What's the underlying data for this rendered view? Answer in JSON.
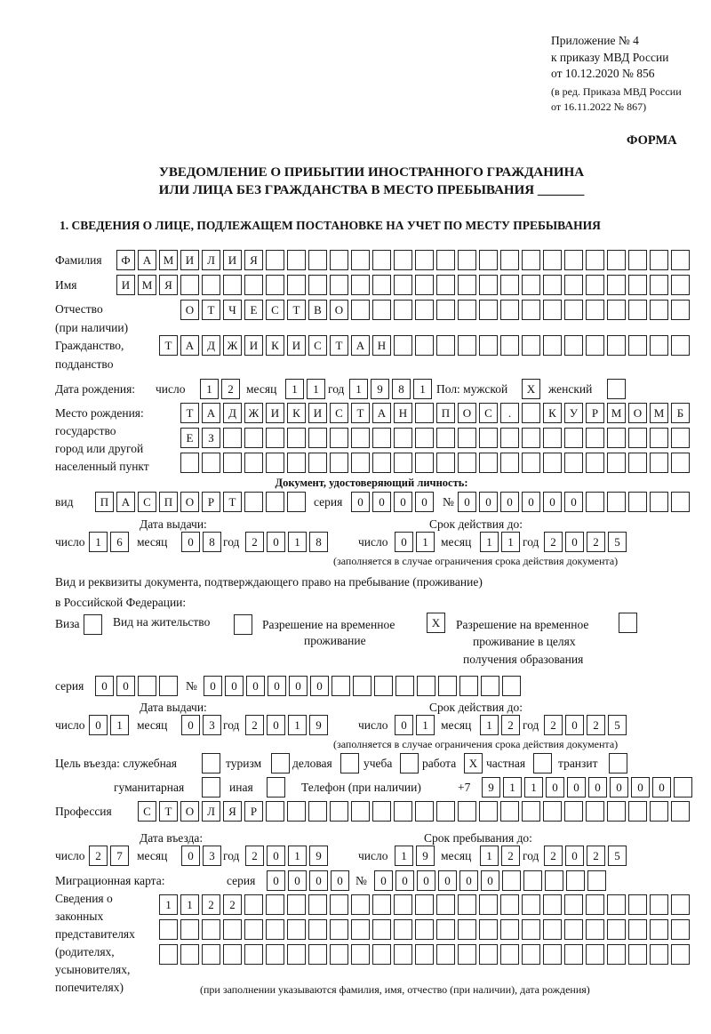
{
  "header": {
    "appendix": "Приложение № 4",
    "order": "к приказу МВД России",
    "order_date": "от 10.12.2020 № 856",
    "amend1": "(в ред. Приказа МВД России",
    "amend2": "от 16.11.2022 № 867)",
    "form_label": "ФОРМА",
    "title1": "УВЕДОМЛЕНИЕ О ПРИБЫТИИ ИНОСТРАННОГО ГРАЖДАНИНА",
    "title2": "ИЛИ ЛИЦА БЕЗ ГРАЖДАНСТВА В МЕСТО ПРЕБЫВАНИЯ _______",
    "section1": "1. СВЕДЕНИЯ О ЛИЦЕ, ПОДЛЕЖАЩЕМ ПОСТАНОВКЕ НА УЧЕТ ПО МЕСТУ ПРЕБЫВАНИЯ"
  },
  "person": {
    "surname_label": "Фамилия",
    "surname": "ФАМИЛИЯ",
    "name_label": "Имя",
    "name": "ИМЯ",
    "patronymic_label": "Отчество",
    "patronymic_label2": "(при наличии)",
    "patronymic": "ОТЧЕСТВО",
    "citizenship_label": "Гражданство,",
    "citizenship_label2": "подданство",
    "citizenship": "ТАДЖИКИСТАН",
    "dob_label": "Дата рождения:",
    "day_label": "число",
    "month_label": "месяц",
    "year_label": "год",
    "dob_day": "12",
    "dob_month": "11",
    "dob_year": "1981",
    "sex_label": "Пол: мужской",
    "male": "X",
    "female_label": "женский",
    "female": "",
    "birthplace_label1": "Место рождения:",
    "birthplace_label2": "государство",
    "birthplace_label3": "город или другой",
    "birthplace_label4": "населенный пункт",
    "birthplace_line1": "ТАДЖИКИСТАН ПОС. КУРМОМБ",
    "birthplace_line2": "ЕЗ",
    "birthplace_line3": ""
  },
  "id_document": {
    "heading": "Документ, удостоверяющий личность:",
    "type_label": "вид",
    "type": "ПАСПОРТ",
    "series_label": "серия",
    "series": "0000",
    "number_label": "№",
    "number": "000000",
    "issued_label": "Дата выдачи:",
    "valid_label": "Срок действия до:",
    "issued_day": "16",
    "issued_month": "08",
    "issued_year": "2018",
    "valid_day": "01",
    "valid_month": "11",
    "valid_year": "2025",
    "note": "(заполняется в случае ограничения срока действия документа)"
  },
  "stay_document": {
    "label1": "Вид и реквизиты документа, подтверждающего право на пребывание (проживание)",
    "label2": "в Российской Федерации:",
    "visa_label": "Виза",
    "visa": "",
    "residence_label": "Вид на жительство",
    "residence": "",
    "trp_label1": "Разрешение на временное",
    "trp_label2": "проживание",
    "trp": "X",
    "trp_edu_label1": "Разрешение на временное",
    "trp_edu_label2": "проживание в целях",
    "trp_edu_label3": "получения образования",
    "trp_edu": "",
    "series_label": "серия",
    "series": "00",
    "number_label": "№",
    "number": "000000",
    "issued_label": "Дата выдачи:",
    "valid_label": "Срок действия до:",
    "issued_day": "01",
    "issued_month": "03",
    "issued_year": "2019",
    "valid_day": "01",
    "valid_month": "12",
    "valid_year": "2025",
    "note": "(заполняется в случае ограничения срока действия документа)"
  },
  "purpose": {
    "label": "Цель въезда: служебная",
    "service": "",
    "tourism_label": "туризм",
    "tourism": "",
    "business_label": "деловая",
    "business": "",
    "study_label": "учеба",
    "study": "",
    "work_label": "работа",
    "work": "X",
    "private_label": "частная",
    "private": "",
    "transit_label": "транзит",
    "transit": "",
    "humanitarian_label": "гуманитарная",
    "humanitarian": "",
    "other_label": "иная",
    "other": "",
    "phone_label": "Телефон (при наличии)",
    "phone_prefix": "+7",
    "phone": "911000000"
  },
  "profession": {
    "label": "Профессия",
    "value": "СТОЛЯР"
  },
  "entry": {
    "entry_label": "Дата въезда:",
    "stay_until_label": "Срок пребывания до:",
    "entry_day": "27",
    "entry_month": "03",
    "entry_year": "2019",
    "until_day": "19",
    "until_month": "12",
    "until_year": "2025"
  },
  "migration_card": {
    "label": "Миграционная карта:",
    "series_label": "серия",
    "series": "0000",
    "number_label": "№",
    "number": "000000"
  },
  "representatives": {
    "label1": "Сведения о",
    "label2": "законных",
    "label3": "представителях",
    "label4": "(родителях,",
    "label5": "усыновителях,",
    "label6": "попечителях)",
    "line1": "1122",
    "line2": "",
    "line3": "",
    "note": "(при заполнении указываются фамилия, имя, отчество (при наличии), дата рождения)"
  }
}
